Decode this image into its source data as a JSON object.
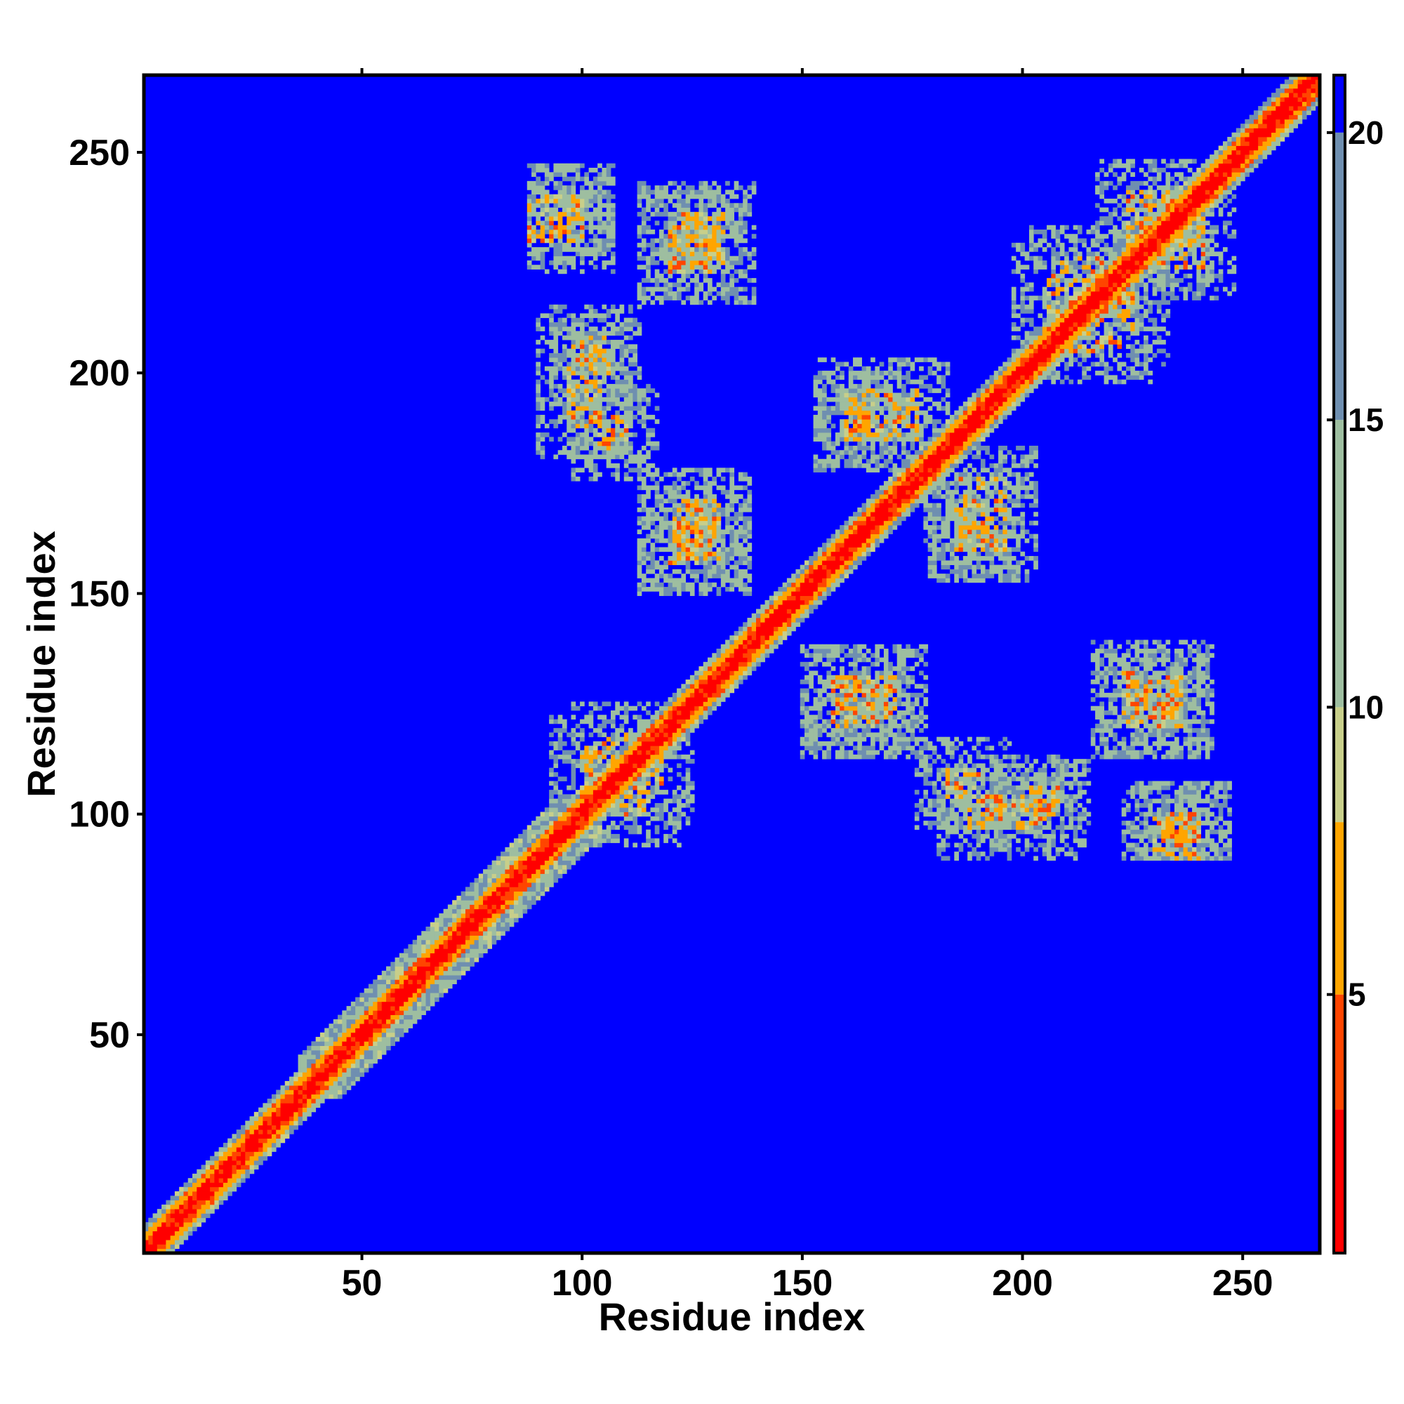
{
  "chart_data": {
    "type": "heatmap",
    "title": "",
    "xlabel": "Residue index",
    "ylabel": "Residue index",
    "xlim": [
      1,
      267
    ],
    "ylim": [
      1,
      267
    ],
    "n_residues": 267,
    "x_ticks": [
      50,
      100,
      150,
      200,
      250
    ],
    "y_ticks": [
      50,
      100,
      150,
      200,
      250
    ],
    "x_tick_labels": [
      "50",
      "100",
      "150",
      "200",
      "250"
    ],
    "y_tick_labels": [
      "50",
      "100",
      "150",
      "200",
      "250"
    ],
    "colorbar": {
      "ticks": [
        5,
        10,
        15,
        20
      ],
      "tick_labels": [
        "5",
        "10",
        "15",
        "20"
      ],
      "range": [
        0.5,
        21
      ],
      "colors": [
        {
          "max": 3,
          "color": "#ff0000"
        },
        {
          "max": 5,
          "color": "#ff4500"
        },
        {
          "max": 8,
          "color": "#ffa500"
        },
        {
          "max": 10,
          "color": "#c8cf8a"
        },
        {
          "max": 15,
          "color": "#9ebea0"
        },
        {
          "max": 20,
          "color": "#6f8fb0"
        },
        {
          "max": 21,
          "color": "#0000ff"
        }
      ]
    },
    "background_value": 21,
    "background_color": "#0000ff",
    "matrix_note_diagonal": "distance below 3 along the full diagonal, band widening through residues 40-100",
    "contact_regions": [
      {
        "x": [
          88,
          100
        ],
        "y": [
          230,
          240
        ]
      },
      {
        "x": [
          120,
          132
        ],
        "y": [
          223,
          236
        ]
      },
      {
        "x": [
          97,
          104
        ],
        "y": [
          188,
          206
        ]
      },
      {
        "x": [
          121,
          131
        ],
        "y": [
          158,
          171
        ]
      },
      {
        "x": [
          105,
          115
        ],
        "y": [
          100,
          118
        ]
      },
      {
        "x": [
          157,
          167
        ],
        "y": [
          120,
          131
        ]
      },
      {
        "x": [
          185,
          196
        ],
        "y": [
          160,
          176
        ]
      },
      {
        "x": [
          209,
          222
        ],
        "y": [
          205,
          226
        ]
      },
      {
        "x": [
          224,
          235
        ],
        "y": [
          120,
          130
        ]
      },
      {
        "x": [
          224,
          240
        ],
        "y": [
          227,
          241
        ]
      },
      {
        "x": [
          200,
          208
        ],
        "y": [
          100,
          106
        ]
      },
      {
        "x": [
          232,
          240
        ],
        "y": [
          94,
          100
        ]
      },
      {
        "x": [
          160,
          166
        ],
        "y": [
          186,
          193
        ]
      },
      {
        "x": [
          183,
          190
        ],
        "y": [
          104,
          110
        ]
      }
    ]
  }
}
